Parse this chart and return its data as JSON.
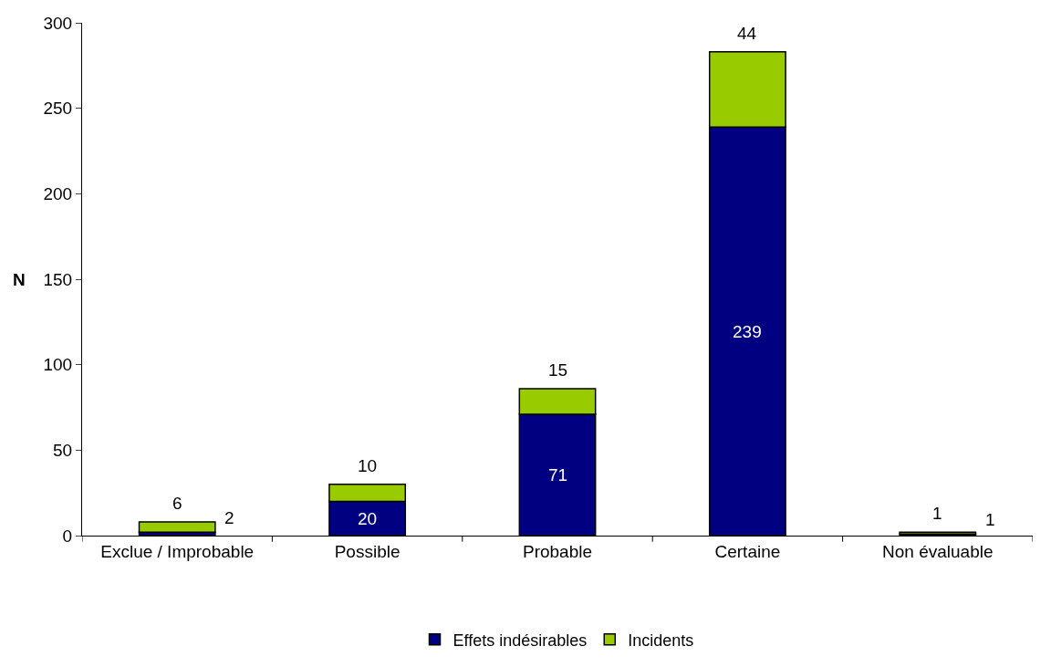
{
  "chart_data": {
    "type": "bar",
    "stacked": true,
    "ylabel": "N",
    "categories": [
      "Exclue / Improbable",
      "Possible",
      "Probable",
      "Certaine",
      "Non évaluable"
    ],
    "series": [
      {
        "name": "Effets indésirables",
        "color": "#000080",
        "values": [
          2,
          20,
          71,
          239,
          1
        ]
      },
      {
        "name": "Incidents",
        "color": "#99cc00",
        "values": [
          6,
          10,
          15,
          44,
          1
        ]
      }
    ],
    "ylim": [
      0,
      300
    ],
    "yticks": [
      0,
      50,
      100,
      150,
      200,
      250,
      300
    ],
    "grid": false,
    "legend": "bottom",
    "data_labels": true
  }
}
